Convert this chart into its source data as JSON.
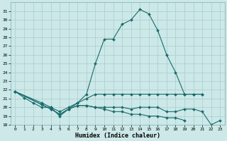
{
  "xlabel": "Humidex (Indice chaleur)",
  "xlim": [
    -0.5,
    23.5
  ],
  "ylim": [
    18,
    32
  ],
  "yticks": [
    18,
    19,
    20,
    21,
    22,
    23,
    24,
    25,
    26,
    27,
    28,
    29,
    30,
    31
  ],
  "xticks": [
    0,
    1,
    2,
    3,
    4,
    5,
    6,
    7,
    8,
    9,
    10,
    11,
    12,
    13,
    14,
    15,
    16,
    17,
    18,
    19,
    20,
    21,
    22,
    23
  ],
  "bg_color": "#cce8e8",
  "grid_color": "#aacccc",
  "line_color": "#1a6b6b",
  "curves": [
    {
      "x": [
        0,
        1,
        2,
        3,
        4,
        5,
        6,
        7,
        8,
        9,
        10,
        11,
        12,
        13,
        14,
        15,
        16,
        17,
        18,
        19,
        20,
        21
      ],
      "y": [
        21.8,
        21.1,
        20.5,
        20.0,
        20.0,
        19.0,
        19.8,
        20.5,
        21.5,
        25.0,
        27.8,
        27.8,
        29.5,
        30.0,
        31.2,
        30.7,
        28.8,
        26.0,
        24.0,
        21.5,
        21.5,
        21.5
      ]
    },
    {
      "x": [
        0,
        3,
        4,
        5,
        6,
        7,
        8,
        9,
        10,
        11,
        12,
        13,
        14,
        15,
        16,
        17,
        18,
        19,
        20,
        21
      ],
      "y": [
        21.8,
        20.5,
        20.0,
        19.5,
        20.0,
        20.5,
        21.0,
        21.5,
        21.5,
        21.5,
        21.5,
        21.5,
        21.5,
        21.5,
        21.5,
        21.5,
        21.5,
        21.5,
        21.5,
        21.5
      ]
    },
    {
      "x": [
        0,
        3,
        4,
        5,
        6,
        7,
        8,
        9,
        10,
        11,
        12,
        13,
        14,
        15,
        16,
        17,
        18,
        19,
        20,
        21,
        22,
        23
      ],
      "y": [
        21.8,
        20.3,
        19.8,
        19.2,
        19.8,
        20.2,
        20.2,
        20.0,
        20.0,
        20.0,
        20.0,
        19.8,
        20.0,
        20.0,
        20.0,
        19.5,
        19.5,
        19.8,
        19.8,
        19.5,
        18.0,
        18.5
      ]
    },
    {
      "x": [
        0,
        3,
        4,
        5,
        6,
        7,
        8,
        9,
        10,
        11,
        12,
        13,
        14,
        15,
        16,
        17,
        18,
        19
      ],
      "y": [
        21.8,
        20.3,
        19.8,
        19.2,
        19.8,
        20.2,
        20.2,
        20.0,
        19.8,
        19.5,
        19.5,
        19.2,
        19.2,
        19.0,
        19.0,
        18.8,
        18.8,
        18.5
      ]
    }
  ]
}
